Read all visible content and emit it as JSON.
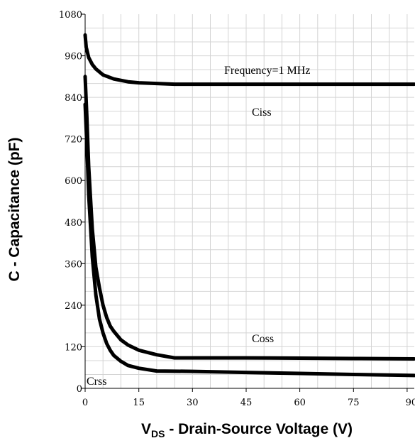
{
  "chart_data": {
    "type": "line",
    "xlabel": {
      "prefix": "V",
      "subscript": "DS",
      "suffix": " - Drain-Source Voltage (V)"
    },
    "ylabel": "C - Capacitance (pF)",
    "xlim": [
      0,
      92
    ],
    "ylim": [
      0,
      1080
    ],
    "x_ticks": [
      0,
      15,
      30,
      45,
      60,
      75,
      90
    ],
    "y_ticks": [
      0,
      120,
      240,
      360,
      480,
      600,
      720,
      840,
      960,
      1080
    ],
    "x_tick_labels": [
      "0",
      "15",
      "30",
      "45",
      "60",
      "75",
      "90"
    ],
    "y_tick_labels": [
      "0",
      "120",
      "240",
      "360",
      "480",
      "600",
      "720",
      "840",
      "960",
      "1080"
    ],
    "grid": true,
    "annotations": [
      {
        "text": "Frequency=1 MHz",
        "x": 38,
        "y": 885
      },
      {
        "text": "Ciss",
        "x": 46,
        "y": 770
      },
      {
        "text": "Coss",
        "x": 46,
        "y": 120
      },
      {
        "text": "Crss",
        "x": 0.5,
        "y": 0
      }
    ],
    "series": [
      {
        "name": "Ciss",
        "x": [
          0,
          0.3,
          1,
          2,
          3,
          5,
          8,
          12,
          15,
          20,
          25,
          30,
          45,
          60,
          75,
          92
        ],
        "y": [
          1020,
          985,
          955,
          935,
          922,
          905,
          893,
          885,
          882,
          880,
          878,
          878,
          878,
          878,
          878,
          878
        ]
      },
      {
        "name": "Coss",
        "x": [
          0,
          0.5,
          1,
          2,
          3,
          4,
          5,
          6,
          7,
          8,
          10,
          12,
          15,
          20,
          25,
          30,
          45,
          60,
          75,
          92
        ],
        "y": [
          900,
          780,
          640,
          460,
          350,
          290,
          240,
          205,
          180,
          165,
          140,
          125,
          110,
          97,
          88,
          88,
          88,
          87,
          86,
          85
        ]
      },
      {
        "name": "Crss",
        "x": [
          0,
          0.5,
          1,
          2,
          3,
          4,
          5,
          6,
          7,
          8,
          10,
          12,
          15,
          20,
          30,
          45,
          60,
          75,
          92
        ],
        "y": [
          820,
          700,
          560,
          380,
          270,
          200,
          160,
          130,
          110,
          95,
          78,
          66,
          58,
          50,
          49,
          46,
          43,
          40,
          37
        ]
      }
    ]
  }
}
